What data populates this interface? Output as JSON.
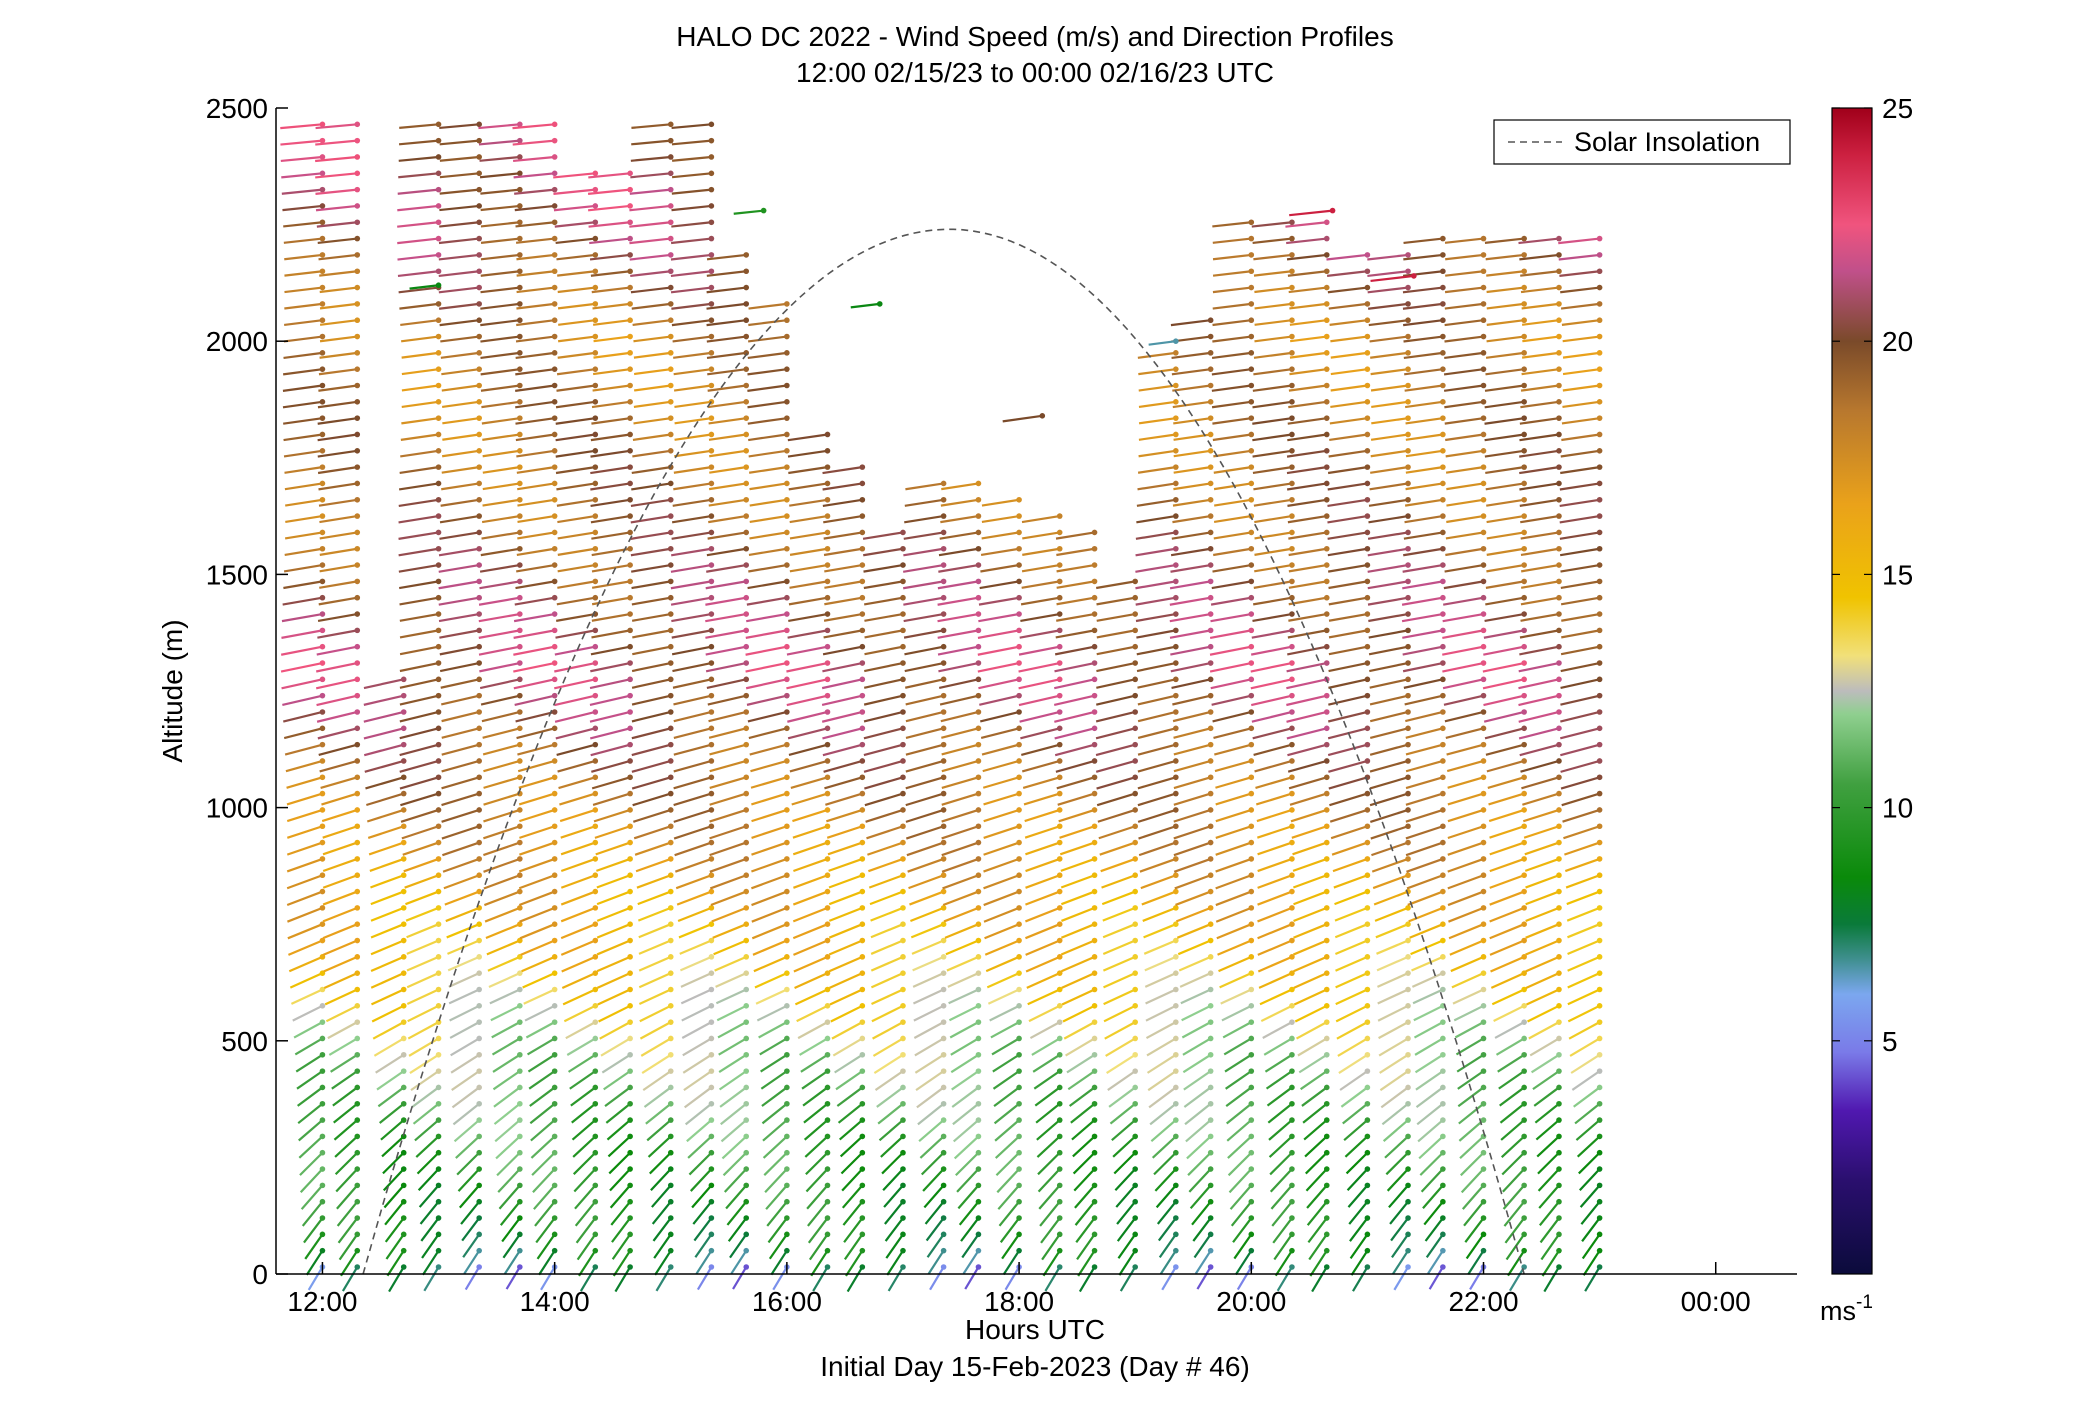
{
  "chart_data": {
    "type": "wind_barb_profile",
    "title": "HALO DC 2022 - Wind Speed (m/s) and Direction Profiles",
    "subtitle": "12:00 02/15/23 to 00:00 02/16/23  UTC",
    "xlabel": "Hours UTC",
    "xlabel2": "Initial Day 15-Feb-2023 (Day # 46)",
    "ylabel": "Altitude (m)",
    "xlim": [
      11.6,
      24.7
    ],
    "ylim": [
      0,
      2500
    ],
    "x_ticks": [
      12,
      14,
      16,
      18,
      20,
      22,
      24
    ],
    "x_tick_labels": [
      "12:00",
      "14:00",
      "16:00",
      "18:00",
      "20:00",
      "22:00",
      "00:00"
    ],
    "y_ticks": [
      0,
      500,
      1000,
      1500,
      2000,
      2500
    ],
    "y_tick_labels": [
      "0",
      "500",
      "1000",
      "1500",
      "2000",
      "2500"
    ],
    "colorbar": {
      "min": 0,
      "max": 25,
      "ticks": [
        5,
        10,
        15,
        20,
        25
      ],
      "tick_labels": [
        "5",
        "10",
        "15",
        "20",
        "25"
      ],
      "unit": "ms",
      "unit_exp": "-1"
    },
    "legend": {
      "position": "top-right",
      "entries": [
        "Solar Insolation"
      ]
    },
    "solar_insolation": {
      "style": "dashed",
      "color": "#555555",
      "x_start": 12.35,
      "x_peak": 17.4,
      "x_end": 22.35,
      "peak_altitude": 2240
    },
    "profiles": {
      "times": [
        12.0,
        12.3,
        12.7,
        13.0,
        13.35,
        13.7,
        14.0,
        14.35,
        14.65,
        15.0,
        15.35,
        15.65,
        16.0,
        16.35,
        16.65,
        17.0,
        17.35,
        17.65,
        18.0,
        18.35,
        18.65,
        19.0,
        19.35,
        19.65,
        20.0,
        20.35,
        20.65,
        21.0,
        21.35,
        21.65,
        22.0,
        22.35,
        22.65,
        23.0
      ],
      "altitude_step_m": 35,
      "time_limits": [
        [
          0,
          2480
        ],
        [
          0,
          2490
        ],
        [
          0,
          1300
        ],
        [
          0,
          2490
        ],
        [
          0,
          2490
        ],
        [
          0,
          2490
        ],
        [
          0,
          2490
        ],
        [
          0,
          2360
        ],
        [
          0,
          2360
        ],
        [
          0,
          2490
        ],
        [
          0,
          2490
        ],
        [
          0,
          2200
        ],
        [
          0,
          2100
        ],
        [
          0,
          1800
        ],
        [
          0,
          1760
        ],
        [
          0,
          1600
        ],
        [
          0,
          1700
        ],
        [
          0,
          1700
        ],
        [
          0,
          1660
        ],
        [
          0,
          1650
        ],
        [
          0,
          1600
        ],
        [
          0,
          1490
        ],
        [
          0,
          1980
        ],
        [
          0,
          2060
        ],
        [
          0,
          2280
        ],
        [
          0,
          2280
        ],
        [
          0,
          2280
        ],
        [
          0,
          2200
        ],
        [
          0,
          2200
        ],
        [
          0,
          2240
        ],
        [
          0,
          2240
        ],
        [
          0,
          2240
        ],
        [
          0,
          2240
        ],
        [
          0,
          2240
        ]
      ],
      "speed_profile_ms": [
        {
          "alt": 0,
          "speed": 5
        },
        {
          "alt": 60,
          "speed": 8
        },
        {
          "alt": 300,
          "speed": 10
        },
        {
          "alt": 500,
          "speed": 12
        },
        {
          "alt": 700,
          "speed": 15
        },
        {
          "alt": 1000,
          "speed": 18
        },
        {
          "alt": 1300,
          "speed": 21
        },
        {
          "alt": 1600,
          "speed": 19
        },
        {
          "alt": 2000,
          "speed": 18
        },
        {
          "alt": 2300,
          "speed": 21
        }
      ],
      "isolated_points": [
        {
          "time": 13.0,
          "alt": 2120,
          "speed": 8
        },
        {
          "time": 15.8,
          "alt": 2280,
          "speed": 9
        },
        {
          "time": 16.8,
          "alt": 2080,
          "speed": 8
        },
        {
          "time": 19.35,
          "alt": 2000,
          "speed": 6
        },
        {
          "time": 18.2,
          "alt": 1840,
          "speed": 20
        },
        {
          "time": 20.7,
          "alt": 2280,
          "speed": 24
        },
        {
          "time": 21.4,
          "alt": 2140,
          "speed": 24
        }
      ]
    }
  }
}
